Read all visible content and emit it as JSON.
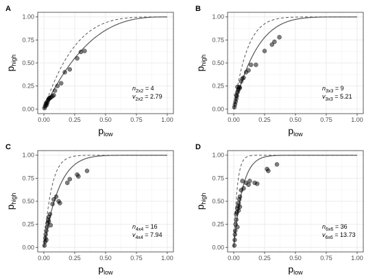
{
  "chart_data": [
    {
      "panel": "A",
      "type": "scatter",
      "xlabel": "p",
      "xlabel_sub": "low",
      "ylabel": "p",
      "ylabel_sub": "high",
      "xlim": [
        0,
        1
      ],
      "ylim": [
        0,
        1
      ],
      "x_ticks": [
        "0.00",
        "0.25",
        "0.50",
        "0.75",
        "1.00"
      ],
      "y_ticks": [
        "0.00",
        "0.25",
        "0.50",
        "0.75",
        "1.00"
      ],
      "grid": true,
      "n_label": "n",
      "n_sub": "2x2",
      "n_value": "4",
      "v_label": "v",
      "v_sub": "2x2",
      "v_value": "2.79",
      "n": 4,
      "v": 2.79,
      "points": [
        [
          0.005,
          0.01
        ],
        [
          0.01,
          0.03
        ],
        [
          0.015,
          0.05
        ],
        [
          0.02,
          0.07
        ],
        [
          0.03,
          0.08
        ],
        [
          0.035,
          0.1
        ],
        [
          0.04,
          0.11
        ],
        [
          0.05,
          0.12
        ],
        [
          0.06,
          0.13
        ],
        [
          0.07,
          0.14
        ],
        [
          0.08,
          0.15
        ],
        [
          0.09,
          0.2
        ],
        [
          0.11,
          0.25
        ],
        [
          0.14,
          0.28
        ],
        [
          0.17,
          0.4
        ],
        [
          0.21,
          0.43
        ],
        [
          0.27,
          0.55
        ],
        [
          0.3,
          0.62
        ],
        [
          0.33,
          0.63
        ],
        [
          0.02,
          0.04
        ],
        [
          0.025,
          0.06
        ],
        [
          0.045,
          0.12
        ]
      ]
    },
    {
      "panel": "B",
      "type": "scatter",
      "xlabel": "p",
      "xlabel_sub": "low",
      "ylabel": "p",
      "ylabel_sub": "high",
      "xlim": [
        0,
        1
      ],
      "ylim": [
        0,
        1
      ],
      "x_ticks": [
        "0.00",
        "0.25",
        "0.50",
        "0.75",
        "1.00"
      ],
      "y_ticks": [
        "0.00",
        "0.25",
        "0.50",
        "0.75",
        "1.00"
      ],
      "grid": true,
      "n_label": "n",
      "n_sub": "3x3",
      "n_value": "9",
      "v_label": "v",
      "v_sub": "3x3",
      "v_value": "5.21",
      "n": 9,
      "v": 5.21,
      "points": [
        [
          0.005,
          0.02
        ],
        [
          0.01,
          0.05
        ],
        [
          0.015,
          0.08
        ],
        [
          0.02,
          0.11
        ],
        [
          0.025,
          0.14
        ],
        [
          0.03,
          0.18
        ],
        [
          0.035,
          0.2
        ],
        [
          0.04,
          0.22
        ],
        [
          0.045,
          0.24
        ],
        [
          0.05,
          0.23
        ],
        [
          0.06,
          0.3
        ],
        [
          0.07,
          0.33
        ],
        [
          0.08,
          0.34
        ],
        [
          0.1,
          0.4
        ],
        [
          0.12,
          0.42
        ],
        [
          0.14,
          0.48
        ],
        [
          0.18,
          0.48
        ],
        [
          0.25,
          0.63
        ],
        [
          0.31,
          0.7
        ],
        [
          0.33,
          0.73
        ],
        [
          0.37,
          0.78
        ],
        [
          0.02,
          0.15
        ],
        [
          0.03,
          0.24
        ]
      ]
    },
    {
      "panel": "C",
      "type": "scatter",
      "xlabel": "p",
      "xlabel_sub": "low",
      "ylabel": "p",
      "ylabel_sub": "high",
      "xlim": [
        0,
        1
      ],
      "ylim": [
        0,
        1
      ],
      "x_ticks": [
        "0.00",
        "0.25",
        "0.50",
        "0.75",
        "1.00"
      ],
      "y_ticks": [
        "0.00",
        "0.25",
        "0.50",
        "0.75",
        "1.00"
      ],
      "grid": true,
      "n_label": "n",
      "n_sub": "4x4",
      "n_value": "16",
      "v_label": "v",
      "v_sub": "4x4",
      "v_value": "7.94",
      "n": 16,
      "v": 7.94,
      "points": [
        [
          0.005,
          0.02
        ],
        [
          0.01,
          0.06
        ],
        [
          0.012,
          0.1
        ],
        [
          0.015,
          0.14
        ],
        [
          0.02,
          0.18
        ],
        [
          0.025,
          0.22
        ],
        [
          0.03,
          0.26
        ],
        [
          0.035,
          0.3
        ],
        [
          0.04,
          0.33
        ],
        [
          0.05,
          0.36
        ],
        [
          0.055,
          0.24
        ],
        [
          0.07,
          0.47
        ],
        [
          0.08,
          0.52
        ],
        [
          0.1,
          0.55
        ],
        [
          0.12,
          0.5
        ],
        [
          0.13,
          0.48
        ],
        [
          0.19,
          0.7
        ],
        [
          0.21,
          0.74
        ],
        [
          0.27,
          0.79
        ],
        [
          0.28,
          0.77
        ],
        [
          0.35,
          0.83
        ],
        [
          0.02,
          0.08
        ],
        [
          0.04,
          0.28
        ]
      ]
    },
    {
      "panel": "D",
      "type": "scatter",
      "xlabel": "p",
      "xlabel_sub": "low",
      "ylabel": "p",
      "ylabel_sub": "high",
      "xlim": [
        0,
        1
      ],
      "ylim": [
        0,
        1
      ],
      "x_ticks": [
        "0.00",
        "0.25",
        "0.50",
        "0.75",
        "1.00"
      ],
      "y_ticks": [
        "0.00",
        "0.25",
        "0.50",
        "0.75",
        "1.00"
      ],
      "grid": true,
      "n_label": "n",
      "n_sub": "6x6",
      "n_value": "36",
      "v_label": "v",
      "v_sub": "6x6",
      "v_value": "13.73",
      "n": 36,
      "v": 13.73,
      "points": [
        [
          0.005,
          0.02
        ],
        [
          0.008,
          0.08
        ],
        [
          0.01,
          0.14
        ],
        [
          0.012,
          0.18
        ],
        [
          0.015,
          0.25
        ],
        [
          0.02,
          0.3
        ],
        [
          0.025,
          0.38
        ],
        [
          0.03,
          0.42
        ],
        [
          0.035,
          0.45
        ],
        [
          0.04,
          0.48
        ],
        [
          0.045,
          0.52
        ],
        [
          0.05,
          0.55
        ],
        [
          0.06,
          0.62
        ],
        [
          0.07,
          0.72
        ],
        [
          0.08,
          0.64
        ],
        [
          0.1,
          0.7
        ],
        [
          0.12,
          0.68
        ],
        [
          0.13,
          0.72
        ],
        [
          0.17,
          0.7
        ],
        [
          0.19,
          0.69
        ],
        [
          0.27,
          0.85
        ],
        [
          0.28,
          0.83
        ],
        [
          0.35,
          0.9
        ],
        [
          0.02,
          0.36
        ],
        [
          0.03,
          0.22
        ],
        [
          0.04,
          0.4
        ],
        [
          0.05,
          0.44
        ]
      ]
    }
  ]
}
